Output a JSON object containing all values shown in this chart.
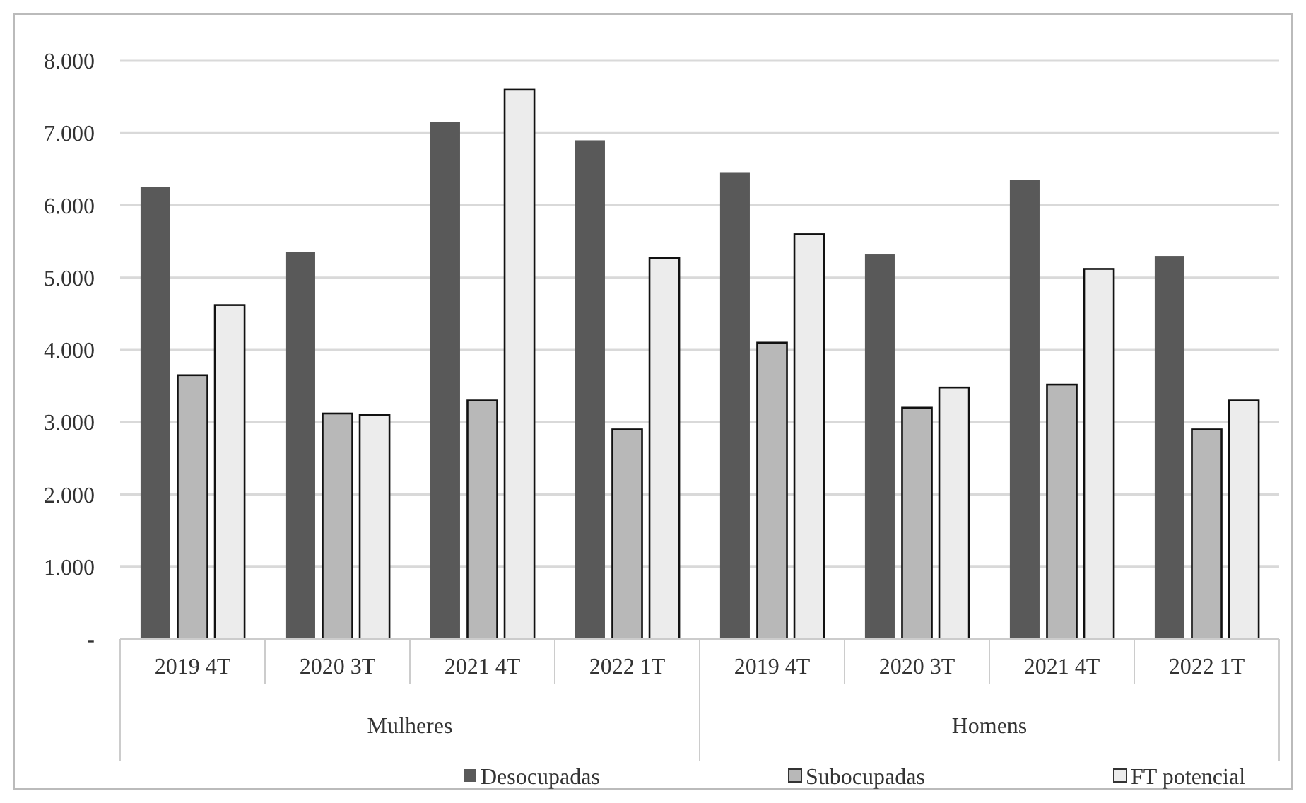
{
  "chart_data": {
    "type": "bar",
    "categories": [
      "2019 4T",
      "2020 3T",
      "2021 4T",
      "2022 1T",
      "2019 4T",
      "2020 3T",
      "2021 4T",
      "2022 1T"
    ],
    "annotations": [
      "Mulheres",
      "Homens"
    ],
    "series": [
      {
        "name": "Desocupadas",
        "color": "#595959",
        "values": [
          6250,
          5350,
          7150,
          6900,
          6450,
          5320,
          6350,
          5300
        ]
      },
      {
        "name": "Subocupadas",
        "color": "#b8b8b8",
        "values": [
          3650,
          3120,
          3300,
          2900,
          4100,
          3200,
          3520,
          2900
        ]
      },
      {
        "name": "FT potencial",
        "color": "#ececec",
        "values": [
          4620,
          3100,
          7600,
          5270,
          5600,
          3480,
          5120,
          3300
        ]
      }
    ],
    "ylim": [
      0,
      8000
    ],
    "yticks": [
      {
        "value": 0,
        "label": "-"
      },
      {
        "value": 1000,
        "label": "1.000"
      },
      {
        "value": 2000,
        "label": "2.000"
      },
      {
        "value": 3000,
        "label": "3.000"
      },
      {
        "value": 4000,
        "label": "4.000"
      },
      {
        "value": 5000,
        "label": "5.000"
      },
      {
        "value": 6000,
        "label": "6.000"
      },
      {
        "value": 7000,
        "label": "7.000"
      },
      {
        "value": 8000,
        "label": "8.000"
      }
    ],
    "grid": "y",
    "legend": "bottom"
  }
}
